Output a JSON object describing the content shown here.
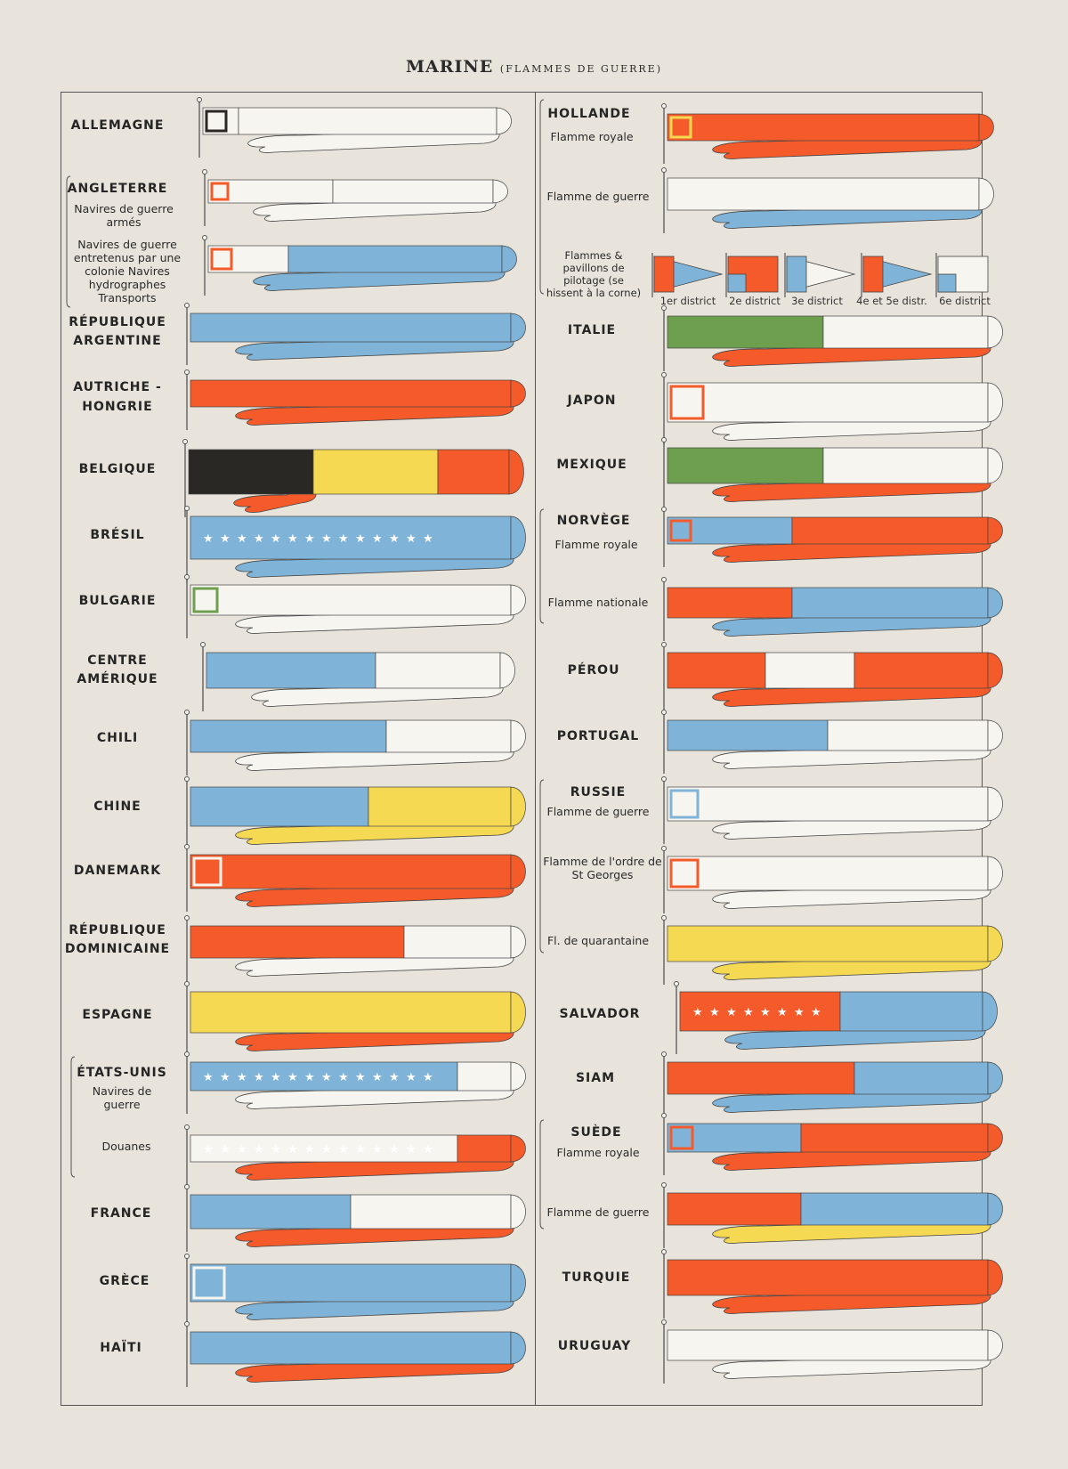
{
  "title": {
    "main": "MARINE",
    "sub": "(FLAMMES DE GUERRE)"
  },
  "colors": {
    "red": "#f45a2a",
    "blue": "#7fb4d8",
    "white": "#f7f5f0",
    "yellow": "#f6d952",
    "green": "#6d9f4f",
    "black": "#2a2824",
    "background": "#e9e4db"
  },
  "left": {
    "allemagne": "ALLEMAGNE",
    "angleterre": "ANGLETERRE",
    "angleterre_sub1": "Navires de guerre armés",
    "angleterre_sub2": "Navires de guerre entretenus par une colonie Navires hydrographes Transports",
    "argentine_1": "RÉPUBLIQUE",
    "argentine_2": "ARGENTINE",
    "autriche_1": "AUTRICHE -",
    "autriche_2": "HONGRIE",
    "belgique": "BELGIQUE",
    "bresil": "BRÉSIL",
    "bulgarie": "BULGARIE",
    "centre_1": "CENTRE",
    "centre_2": "AMÉRIQUE",
    "chili": "CHILI",
    "chine": "CHINE",
    "danemark": "DANEMARK",
    "dominicaine_1": "RÉPUBLIQUE",
    "dominicaine_2": "DOMINICAINE",
    "espagne": "ESPAGNE",
    "etats_unis": "ÉTATS-UNIS",
    "etats_unis_sub1": "Navires de guerre",
    "etats_unis_sub2": "Douanes",
    "france": "FRANCE",
    "grece": "GRÈCE",
    "haiti": "HAÏTI"
  },
  "right": {
    "hollande": "HOLLANDE",
    "hollande_sub1": "Flamme royale",
    "hollande_sub2": "Flamme de guerre",
    "hollande_sub3": "Flammes & pavillons de pilotage (se hissent à la corne)",
    "districts": [
      "1er district",
      "2e district",
      "3e district",
      "4e et 5e distr.",
      "6e district"
    ],
    "italie": "ITALIE",
    "japon": "JAPON",
    "mexique": "MEXIQUE",
    "norvege": "NORVÈGE",
    "norvege_sub1": "Flamme royale",
    "norvege_sub2": "Flamme nationale",
    "perou": "PÉROU",
    "portugal": "PORTUGAL",
    "russie": "RUSSIE",
    "russie_sub1": "Flamme de guerre",
    "russie_sub2": "Flamme de l'ordre de St Georges",
    "russie_sub3": "Fl. de quarantaine",
    "salvador": "SALVADOR",
    "siam": "SIAM",
    "suede": "SUÈDE",
    "suede_sub1": "Flamme royale",
    "suede_sub2": "Flamme de guerre",
    "turquie": "TURQUIE",
    "uruguay": "URUGUAY"
  }
}
